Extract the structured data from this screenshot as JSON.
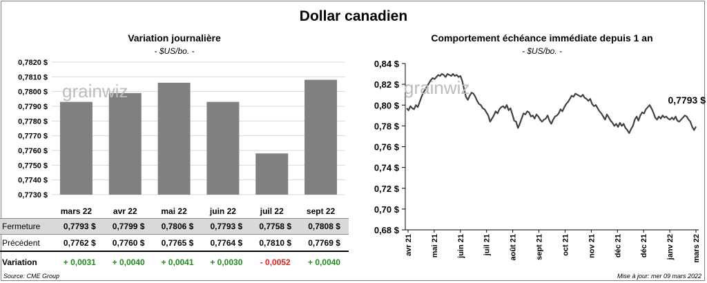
{
  "title": "Dollar canadien",
  "left_chart": {
    "title": "Variation  journalière",
    "unit": "- $US/bo. -",
    "watermark": "grainwiz",
    "chart_data": {
      "type": "bar",
      "categories": [
        "mars 22",
        "avr 22",
        "mai 22",
        "juin 22",
        "juil 22",
        "sept 22"
      ],
      "values": [
        0.7793,
        0.7799,
        0.7806,
        0.7793,
        0.7758,
        0.7808
      ],
      "ylim": [
        0.773,
        0.782
      ],
      "yticks": [
        "0,7730 $",
        "0,7740 $",
        "0,7750 $",
        "0,7760 $",
        "0,7770 $",
        "0,7780 $",
        "0,7790 $",
        "0,7800 $",
        "0,7810 $",
        "0,7820 $"
      ],
      "bar_color": "#808080",
      "grid": true
    }
  },
  "table": {
    "fermeture_label": "Fermeture",
    "precedent_label": "Précédent",
    "variation_label": "Variation",
    "fermeture": [
      "0,7793  $",
      "0,7799  $",
      "0,7806  $",
      "0,7793  $",
      "0,7758  $",
      "0,7808  $"
    ],
    "precedent": [
      "0,7762  $",
      "0,7760  $",
      "0,7765  $",
      "0,7764  $",
      "0,7810  $",
      "0,7769  $"
    ],
    "variation": [
      {
        "text": "+ 0,0031",
        "sign": "pos"
      },
      {
        "text": "+ 0,0040",
        "sign": "pos"
      },
      {
        "text": "+ 0,0041",
        "sign": "pos"
      },
      {
        "text": "+ 0,0030",
        "sign": "pos"
      },
      {
        "text": "- 0,0052",
        "sign": "neg"
      },
      {
        "text": "+ 0,0040",
        "sign": "pos"
      }
    ],
    "colors": {
      "pos": "#1e8a1e",
      "neg": "#e0211c"
    }
  },
  "right_chart": {
    "title": "Comportement échéance immédiate depuis 1 an",
    "unit": "- $US/bo. -",
    "watermark": "grainwiz",
    "last_label": "0,7793 $",
    "chart_data": {
      "type": "line",
      "ylim": [
        0.68,
        0.84
      ],
      "yticks": [
        "0,68 $",
        "0,70 $",
        "0,72 $",
        "0,74 $",
        "0,76 $",
        "0,78 $",
        "0,80 $",
        "0,82 $",
        "0,84 $"
      ],
      "xticks": [
        "avr 21",
        "mai 21",
        "juin 21",
        "juil 21",
        "août 21",
        "sept 21",
        "oct 21",
        "nov 21",
        "déc 21",
        "déc 21",
        "janv 22",
        "mars 22"
      ],
      "line_color": "#404040",
      "series": [
        {
          "name": "Dollar canadien",
          "values": [
            0.797,
            0.795,
            0.799,
            0.797,
            0.796,
            0.8,
            0.798,
            0.803,
            0.808,
            0.812,
            0.815,
            0.818,
            0.821,
            0.824,
            0.826,
            0.825,
            0.827,
            0.829,
            0.828,
            0.83,
            0.829,
            0.827,
            0.83,
            0.829,
            0.828,
            0.83,
            0.828,
            0.829,
            0.827,
            0.828,
            0.823,
            0.815,
            0.808,
            0.805,
            0.809,
            0.812,
            0.811,
            0.808,
            0.804,
            0.801,
            0.8,
            0.797,
            0.796,
            0.793,
            0.79,
            0.784,
            0.787,
            0.79,
            0.794,
            0.792,
            0.796,
            0.798,
            0.799,
            0.797,
            0.8,
            0.795,
            0.797,
            0.791,
            0.785,
            0.784,
            0.778,
            0.782,
            0.787,
            0.792,
            0.791,
            0.794,
            0.793,
            0.789,
            0.79,
            0.787,
            0.791,
            0.789,
            0.786,
            0.784,
            0.786,
            0.787,
            0.79,
            0.785,
            0.782,
            0.786,
            0.789,
            0.79,
            0.792,
            0.796,
            0.794,
            0.798,
            0.801,
            0.803,
            0.806,
            0.809,
            0.808,
            0.811,
            0.81,
            0.809,
            0.808,
            0.81,
            0.807,
            0.806,
            0.804,
            0.806,
            0.801,
            0.799,
            0.8,
            0.797,
            0.794,
            0.792,
            0.789,
            0.786,
            0.791,
            0.788,
            0.785,
            0.783,
            0.78,
            0.782,
            0.779,
            0.783,
            0.78,
            0.782,
            0.778,
            0.776,
            0.773,
            0.777,
            0.78,
            0.786,
            0.789,
            0.785,
            0.79,
            0.793,
            0.792,
            0.796,
            0.798,
            0.8,
            0.797,
            0.793,
            0.788,
            0.786,
            0.789,
            0.787,
            0.79,
            0.788,
            0.789,
            0.787,
            0.786,
            0.788,
            0.786,
            0.789,
            0.785,
            0.784,
            0.786,
            0.788,
            0.79,
            0.789,
            0.786,
            0.784,
            0.779,
            0.776,
            0.7793
          ]
        }
      ]
    }
  },
  "footer": {
    "source": "Source: CME Group",
    "updated": "Mise à jour: mer 09 mars 2022"
  }
}
